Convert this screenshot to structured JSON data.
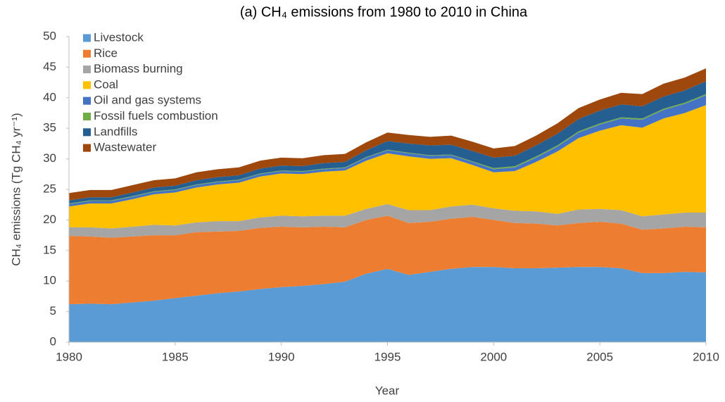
{
  "chart_data": {
    "type": "stacked_area",
    "title": "(a)  CH₄ emissions from 1980 to 2010 in China",
    "x_label": "Year",
    "y_label": "CH₄ emissions (Tg CH₄ yr⁻¹)",
    "x": [
      1980,
      1981,
      1982,
      1983,
      1984,
      1985,
      1986,
      1987,
      1988,
      1989,
      1990,
      1991,
      1992,
      1993,
      1994,
      1995,
      1996,
      1997,
      1998,
      1999,
      2000,
      2001,
      2002,
      2003,
      2004,
      2005,
      2006,
      2007,
      2008,
      2009,
      2010
    ],
    "xlim": [
      1980,
      2010
    ],
    "xticks": [
      1980,
      1985,
      1990,
      1995,
      2000,
      2005,
      2010
    ],
    "ylim": [
      0,
      50
    ],
    "yticks": [
      0,
      5,
      10,
      15,
      20,
      25,
      30,
      35,
      40,
      45,
      50
    ],
    "grid": false,
    "legend_position": "upper-left",
    "series": [
      {
        "name": "Livestock",
        "color": "#5b9bd5",
        "values": [
          6.2,
          6.3,
          6.2,
          6.5,
          6.8,
          7.2,
          7.6,
          8.0,
          8.3,
          8.7,
          9.0,
          9.2,
          9.5,
          9.9,
          11.2,
          12.0,
          11.0,
          11.5,
          12.0,
          12.3,
          12.3,
          12.1,
          12.1,
          12.2,
          12.3,
          12.3,
          12.1,
          11.3,
          11.3,
          11.5,
          11.4
        ]
      },
      {
        "name": "Rice",
        "color": "#ed7d31",
        "values": [
          11.2,
          11.0,
          10.9,
          10.8,
          10.7,
          10.3,
          10.4,
          10.1,
          9.9,
          10.0,
          9.9,
          9.6,
          9.4,
          8.9,
          8.8,
          8.7,
          8.5,
          8.2,
          8.2,
          8.2,
          7.7,
          7.4,
          7.3,
          6.9,
          7.2,
          7.4,
          7.3,
          7.1,
          7.3,
          7.4,
          7.4
        ]
      },
      {
        "name": "Biomass burning",
        "color": "#a5a5a5",
        "values": [
          1.4,
          1.5,
          1.5,
          1.6,
          1.7,
          1.6,
          1.6,
          1.7,
          1.6,
          1.7,
          1.8,
          1.8,
          1.8,
          1.9,
          1.8,
          1.9,
          2.1,
          1.9,
          2.0,
          2.0,
          1.9,
          2.0,
          2.0,
          1.9,
          2.2,
          2.1,
          2.2,
          2.2,
          2.3,
          2.3,
          2.4
        ]
      },
      {
        "name": "Coal",
        "color": "#ffc000",
        "values": [
          3.4,
          3.9,
          4.1,
          4.5,
          5.0,
          5.4,
          5.7,
          6.0,
          6.3,
          6.7,
          6.9,
          6.9,
          7.2,
          7.4,
          7.9,
          8.3,
          8.8,
          8.4,
          7.9,
          6.5,
          5.9,
          6.5,
          8.1,
          10.2,
          11.7,
          12.8,
          13.9,
          14.5,
          15.7,
          16.3,
          17.6
        ]
      },
      {
        "name": "Oil and gas systems",
        "color": "#4472c4",
        "values": [
          0.4,
          0.4,
          0.4,
          0.4,
          0.4,
          0.4,
          0.4,
          0.4,
          0.4,
          0.4,
          0.4,
          0.4,
          0.4,
          0.4,
          0.5,
          0.5,
          0.5,
          0.5,
          0.5,
          0.5,
          0.5,
          0.6,
          0.7,
          0.8,
          0.9,
          1.0,
          1.1,
          1.3,
          1.4,
          1.5,
          1.6
        ]
      },
      {
        "name": "Fossil fuels combustion",
        "color": "#70ad47",
        "values": [
          0.1,
          0.1,
          0.1,
          0.1,
          0.1,
          0.1,
          0.1,
          0.1,
          0.1,
          0.1,
          0.1,
          0.1,
          0.1,
          0.1,
          0.1,
          0.1,
          0.1,
          0.1,
          0.1,
          0.1,
          0.2,
          0.2,
          0.2,
          0.2,
          0.2,
          0.2,
          0.2,
          0.2,
          0.2,
          0.2,
          0.2
        ]
      },
      {
        "name": "Landfills",
        "color": "#255e91",
        "values": [
          0.5,
          0.5,
          0.5,
          0.6,
          0.6,
          0.6,
          0.7,
          0.7,
          0.7,
          0.8,
          0.8,
          0.8,
          0.9,
          0.9,
          1.1,
          1.4,
          1.5,
          1.6,
          1.6,
          1.7,
          1.7,
          1.7,
          1.8,
          1.9,
          2.0,
          2.1,
          2.1,
          2.0,
          2.0,
          2.0,
          2.1
        ]
      },
      {
        "name": "Wastewater",
        "color": "#9e480e",
        "values": [
          1.2,
          1.2,
          1.2,
          1.2,
          1.2,
          1.2,
          1.3,
          1.3,
          1.3,
          1.3,
          1.3,
          1.3,
          1.3,
          1.3,
          1.3,
          1.4,
          1.4,
          1.4,
          1.5,
          1.5,
          1.5,
          1.6,
          1.6,
          1.7,
          1.8,
          1.8,
          1.9,
          2.0,
          2.1,
          2.1,
          2.1
        ]
      }
    ]
  }
}
